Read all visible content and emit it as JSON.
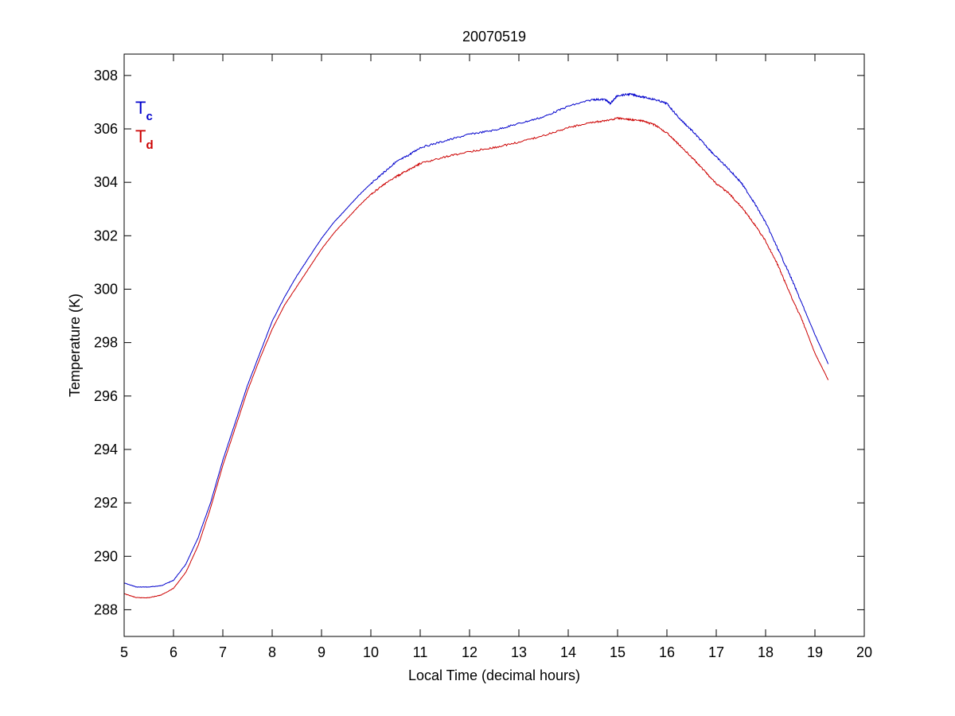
{
  "chart_data": {
    "type": "line",
    "title": "20070519",
    "xlabel": "Local Time (decimal hours)",
    "ylabel": "Temperature (K)",
    "xlim": [
      5,
      20
    ],
    "ylim": [
      287,
      308.8
    ],
    "xticks": [
      "5",
      "6",
      "7",
      "8",
      "9",
      "10",
      "11",
      "12",
      "13",
      "14",
      "15",
      "16",
      "17",
      "18",
      "19",
      "20"
    ],
    "yticks": [
      "288",
      "290",
      "292",
      "294",
      "296",
      "298",
      "300",
      "302",
      "304",
      "306",
      "308"
    ],
    "grid": false,
    "legend_position": "top-left",
    "series": [
      {
        "name": "Tc",
        "label_main": "T",
        "label_sub": "c",
        "color": "#0000cc",
        "x": [
          5.0,
          5.25,
          5.5,
          5.75,
          6.0,
          6.25,
          6.5,
          6.75,
          7.0,
          7.25,
          7.5,
          7.75,
          8.0,
          8.25,
          8.5,
          8.75,
          9.0,
          9.25,
          9.5,
          9.75,
          10.0,
          10.25,
          10.5,
          10.75,
          11.0,
          11.5,
          12.0,
          12.5,
          13.0,
          13.5,
          14.0,
          14.5,
          14.75,
          14.85,
          15.0,
          15.25,
          15.5,
          15.75,
          16.0,
          16.25,
          16.5,
          16.75,
          17.0,
          17.25,
          17.5,
          17.75,
          18.0,
          18.25,
          18.5,
          18.75,
          19.0,
          19.27
        ],
        "y": [
          289.0,
          288.85,
          288.85,
          288.9,
          289.1,
          289.7,
          290.7,
          292.0,
          293.6,
          295.0,
          296.4,
          297.6,
          298.8,
          299.7,
          300.5,
          301.2,
          301.9,
          302.5,
          303.0,
          303.5,
          303.95,
          304.35,
          304.75,
          305.0,
          305.3,
          305.55,
          305.8,
          305.95,
          306.2,
          306.45,
          306.85,
          307.1,
          307.1,
          306.95,
          307.25,
          307.3,
          307.2,
          307.1,
          306.95,
          306.4,
          305.95,
          305.45,
          304.95,
          304.5,
          304.0,
          303.3,
          302.5,
          301.5,
          300.5,
          299.4,
          298.3,
          297.2
        ]
      },
      {
        "name": "Td",
        "label_main": "T",
        "label_sub": "d",
        "color": "#cc0000",
        "x": [
          5.0,
          5.25,
          5.5,
          5.75,
          6.0,
          6.25,
          6.5,
          6.75,
          7.0,
          7.25,
          7.5,
          7.75,
          8.0,
          8.25,
          8.5,
          8.75,
          9.0,
          9.25,
          9.5,
          9.75,
          10.0,
          10.25,
          10.5,
          10.75,
          11.0,
          11.5,
          12.0,
          12.5,
          13.0,
          13.5,
          14.0,
          14.5,
          14.75,
          15.0,
          15.25,
          15.5,
          15.75,
          16.0,
          16.25,
          16.5,
          16.75,
          17.0,
          17.25,
          17.5,
          17.75,
          18.0,
          18.25,
          18.5,
          18.75,
          19.0,
          19.27
        ],
        "y": [
          288.6,
          288.45,
          288.45,
          288.55,
          288.8,
          289.4,
          290.4,
          291.8,
          293.4,
          294.8,
          296.2,
          297.4,
          298.5,
          299.4,
          300.1,
          300.8,
          301.5,
          302.1,
          302.6,
          303.1,
          303.55,
          303.9,
          304.2,
          304.45,
          304.7,
          304.95,
          305.15,
          305.3,
          305.5,
          305.75,
          306.05,
          306.25,
          306.3,
          306.4,
          306.35,
          306.3,
          306.15,
          305.85,
          305.4,
          304.95,
          304.45,
          303.95,
          303.6,
          303.1,
          302.5,
          301.8,
          300.9,
          299.8,
          298.8,
          297.6,
          296.6
        ]
      }
    ]
  }
}
